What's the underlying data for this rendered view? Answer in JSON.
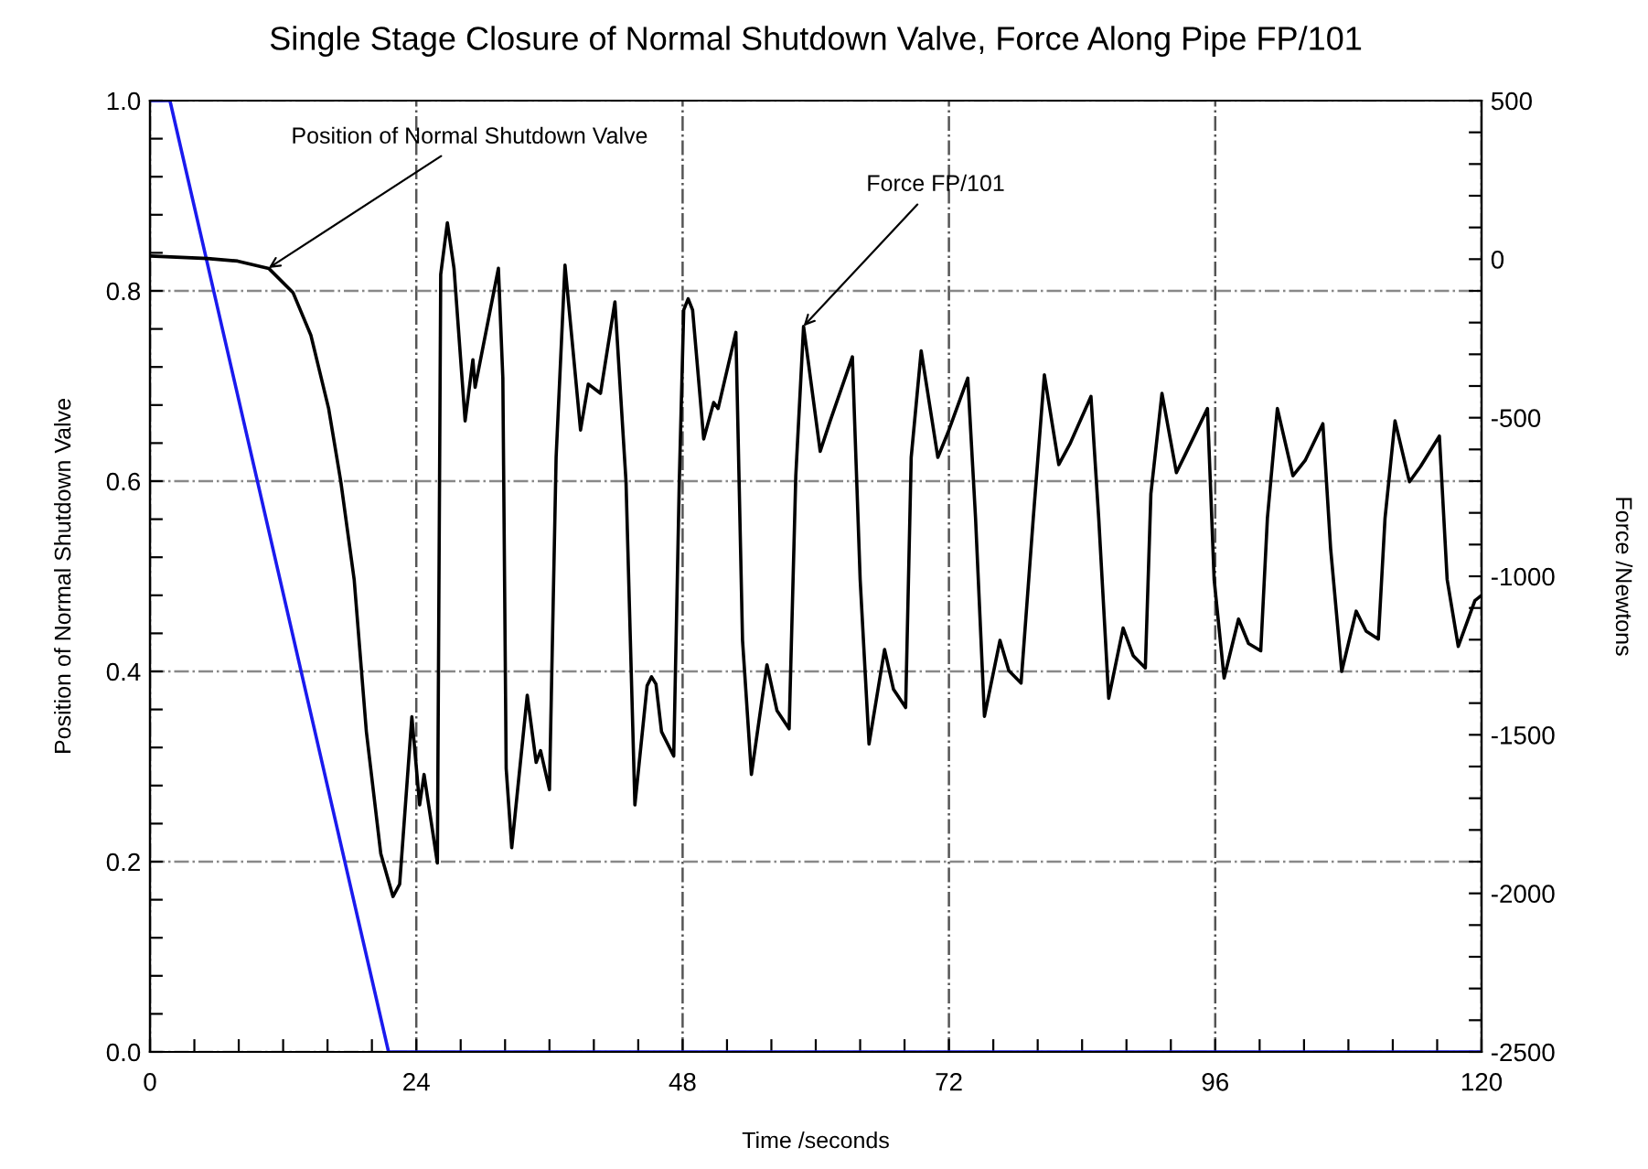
{
  "chart_data": {
    "type": "line",
    "title": "Single Stage Closure of Normal Shutdown Valve, Force Along Pipe FP/101",
    "xlabel": "Time /seconds",
    "ylabel": "Position of Normal Shutdown Valve",
    "y2label": "Force /Newtons",
    "xlim": [
      0,
      120
    ],
    "ylim": [
      0,
      1.0
    ],
    "y2lim": [
      -2500,
      500
    ],
    "xticks": [
      0,
      {
        "value": 4,
        "label": null
      },
      {
        "value": 8,
        "label": null
      },
      {
        "value": 12,
        "label": null
      },
      {
        "value": 16,
        "label": null
      },
      {
        "value": 20,
        "label": null
      },
      24,
      {
        "value": 28,
        "label": null
      },
      {
        "value": 32,
        "label": null
      },
      {
        "value": 36,
        "label": null
      },
      {
        "value": 40,
        "label": null
      },
      {
        "value": 44,
        "label": null
      },
      48,
      {
        "value": 52,
        "label": null
      },
      {
        "value": 56,
        "label": null
      },
      {
        "value": 60,
        "label": null
      },
      {
        "value": 64,
        "label": null
      },
      {
        "value": 68,
        "label": null
      },
      72,
      {
        "value": 76,
        "label": null
      },
      {
        "value": 80,
        "label": null
      },
      {
        "value": 84,
        "label": null
      },
      {
        "value": 88,
        "label": null
      },
      {
        "value": 92,
        "label": null
      },
      96,
      {
        "value": 100,
        "label": null
      },
      {
        "value": 104,
        "label": null
      },
      {
        "value": 108,
        "label": null
      },
      {
        "value": 112,
        "label": null
      },
      {
        "value": 116,
        "label": null
      },
      120
    ],
    "yticks": [
      {
        "value": 0,
        "label": "0.0"
      },
      {
        "value": 0.04,
        "label": null
      },
      {
        "value": 0.08,
        "label": null
      },
      {
        "value": 0.12,
        "label": null
      },
      {
        "value": 0.16,
        "label": null
      },
      0.2,
      {
        "value": 0.24,
        "label": null
      },
      {
        "value": 0.28,
        "label": null
      },
      {
        "value": 0.32,
        "label": null
      },
      {
        "value": 0.36,
        "label": null
      },
      0.4,
      {
        "value": 0.44,
        "label": null
      },
      {
        "value": 0.48,
        "label": null
      },
      {
        "value": 0.52,
        "label": null
      },
      {
        "value": 0.56,
        "label": null
      },
      0.6,
      {
        "value": 0.64,
        "label": null
      },
      {
        "value": 0.68,
        "label": null
      },
      {
        "value": 0.72,
        "label": null
      },
      {
        "value": 0.76,
        "label": null
      },
      0.8,
      {
        "value": 0.84,
        "label": null
      },
      {
        "value": 0.88,
        "label": null
      },
      {
        "value": 0.92,
        "label": null
      },
      {
        "value": 0.96,
        "label": null
      },
      {
        "value": 1.0,
        "label": "1.0"
      }
    ],
    "y2ticks": [
      -2500,
      {
        "value": -2400,
        "label": null
      },
      {
        "value": -2300,
        "label": null
      },
      {
        "value": -2200,
        "label": null
      },
      {
        "value": -2100,
        "label": null
      },
      -2000,
      {
        "value": -1900,
        "label": null
      },
      {
        "value": -1800,
        "label": null
      },
      {
        "value": -1700,
        "label": null
      },
      {
        "value": -1600,
        "label": null
      },
      -1500,
      {
        "value": -1400,
        "label": null
      },
      {
        "value": -1300,
        "label": null
      },
      {
        "value": -1200,
        "label": null
      },
      {
        "value": -1100,
        "label": null
      },
      -1000,
      {
        "value": -900,
        "label": null
      },
      {
        "value": -800,
        "label": null
      },
      {
        "value": -700,
        "label": null
      },
      {
        "value": -600,
        "label": null
      },
      -500,
      {
        "value": -400,
        "label": null
      },
      {
        "value": -300,
        "label": null
      },
      {
        "value": -200,
        "label": null
      },
      {
        "value": -100,
        "label": null
      },
      0,
      {
        "value": 100,
        "label": null
      },
      {
        "value": 200,
        "label": null
      },
      {
        "value": 300,
        "label": null
      },
      {
        "value": 400,
        "label": null
      },
      500
    ],
    "grid": true,
    "line_style": "solid",
    "marker": "none",
    "annotations": [
      {
        "text": "Position of Normal Shutdown Valve",
        "x": 10.7,
        "y": 0.824
      },
      {
        "text": "Force FP/101",
        "x": 58.9,
        "y": 0.763
      }
    ],
    "series": [
      {
        "color": "#1a1aee",
        "x": [
          0,
          1.8,
          21.5,
          120
        ],
        "values": [
          1.0,
          1.0,
          0.0,
          0.0
        ]
      },
      {
        "color": "#000000",
        "axis": "y2",
        "x": [
          0,
          5.2,
          7.9,
          10.7,
          12.9,
          14.5,
          16.1,
          17.2,
          18.4,
          19.5,
          20.8,
          21.9,
          22.5,
          23.6,
          24.3,
          24.7,
          25.9,
          26.2,
          26.8,
          27.4,
          28.4,
          29.1,
          29.3,
          31.4,
          31.8,
          32.1,
          32.6,
          34.0,
          34.8,
          35.2,
          36.0,
          36.6,
          37.4,
          38.8,
          39.5,
          40.6,
          41.9,
          42.9,
          43.7,
          44.8,
          45.2,
          45.6,
          46.1,
          47.2,
          47.7,
          48.1,
          48.5,
          48.9,
          49.9,
          50.8,
          51.2,
          52.8,
          53.4,
          54.2,
          55.6,
          56.5,
          57.6,
          58.2,
          58.9,
          60.4,
          61.3,
          63.3,
          64.0,
          64.8,
          66.2,
          67.0,
          68.1,
          68.6,
          69.5,
          71.0,
          71.9,
          73.7,
          74.4,
          75.2,
          76.6,
          77.4,
          78.5,
          79.6,
          80.6,
          81.9,
          82.9,
          84.8,
          85.5,
          86.4,
          87.7,
          88.6,
          89.7,
          90.2,
          91.2,
          92.5,
          93.3,
          95.3,
          95.9,
          96.8,
          98.1,
          99.0,
          100.1,
          100.7,
          101.6,
          103.0,
          104.1,
          105.7,
          106.4,
          107.4,
          108.7,
          109.6,
          110.7,
          111.3,
          112.2,
          113.5,
          114.5,
          116.2,
          116.9,
          117.9,
          119.4,
          120
        ],
        "values": [
          10,
          2,
          -6,
          -29,
          -106,
          -240,
          -471,
          -702,
          -1010,
          -1490,
          -1875,
          -2010,
          -1971,
          -1443,
          -1721,
          -1625,
          -1904,
          -48,
          115,
          -29,
          -510,
          -317,
          -404,
          -29,
          -375,
          -1606,
          -1856,
          -1375,
          -1587,
          -1550,
          -1673,
          -625,
          -19,
          -539,
          -394,
          -423,
          -135,
          -702,
          -1721,
          -1345,
          -1317,
          -1340,
          -1490,
          -1567,
          -702,
          -160,
          -125,
          -160,
          -567,
          -452,
          -471,
          -231,
          -1202,
          -1625,
          -1279,
          -1423,
          -1481,
          -683,
          -212,
          -606,
          -510,
          -308,
          -1010,
          -1529,
          -1231,
          -1356,
          -1414,
          -625,
          -289,
          -625,
          -548,
          -375,
          -817,
          -1442,
          -1202,
          -1298,
          -1337,
          -817,
          -365,
          -648,
          -583,
          -433,
          -817,
          -1385,
          -1163,
          -1250,
          -1289,
          -740,
          -423,
          -673,
          -616,
          -471,
          -1010,
          -1321,
          -1135,
          -1212,
          -1235,
          -817,
          -471,
          -683,
          -635,
          -519,
          -913,
          -1300,
          -1110,
          -1173,
          -1198,
          -817,
          -510,
          -702,
          -654,
          -558,
          -1010,
          -1221,
          -1077,
          -1060
        ]
      }
    ]
  }
}
